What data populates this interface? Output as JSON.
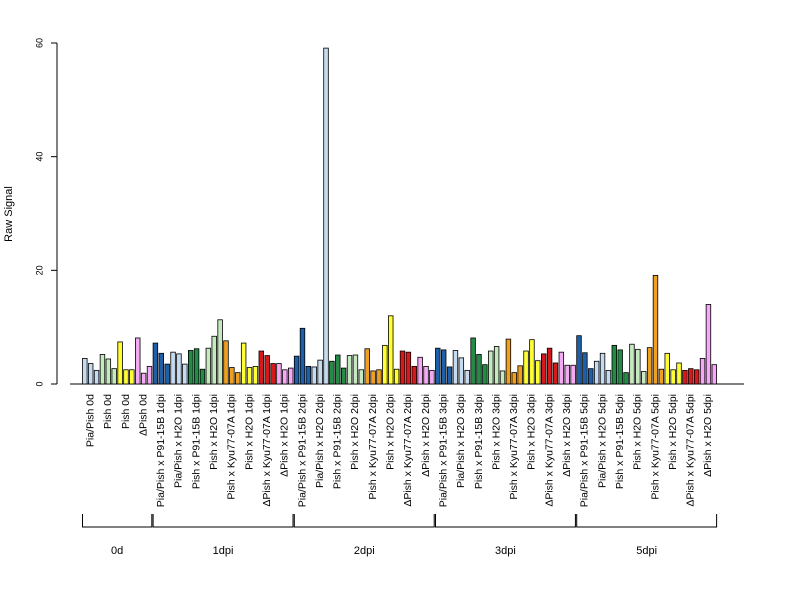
{
  "chart_data": {
    "type": "bar",
    "ylabel": "Raw Signal",
    "ylim": [
      0,
      60
    ],
    "yticks": [
      0,
      20,
      40,
      60
    ],
    "grid": false,
    "bars_per_category": 3,
    "categories": [
      {
        "label": "Pia/Pish 0d",
        "color": "#c6dbef",
        "values": [
          4.5,
          3.6,
          2.4
        ]
      },
      {
        "label": "Pish 0d",
        "color": "#c7e9c0",
        "values": [
          5.2,
          4.4,
          2.7
        ]
      },
      {
        "label": "Pish 0d",
        "color": "#ffff33",
        "values": [
          7.4,
          2.5,
          2.5
        ]
      },
      {
        "label": "ΔPish 0d",
        "color": "#f4a9f4",
        "values": [
          8.1,
          1.9,
          3.1
        ]
      },
      {
        "label": "Pia/Pish x P91-15B 1dpi",
        "color": "#1f5fa8",
        "values": [
          7.2,
          5.4,
          3.5
        ]
      },
      {
        "label": "Pia/Pish x H2O 1dpi",
        "color": "#c6dbef",
        "values": [
          5.6,
          5.3,
          3.5
        ]
      },
      {
        "label": "Pish x P91-15B 1dpi",
        "color": "#238b45",
        "values": [
          5.9,
          6.2,
          2.6
        ]
      },
      {
        "label": "Pish x H2O 1dpi",
        "color": "#c7e9c0",
        "values": [
          6.3,
          8.4,
          11.3
        ]
      },
      {
        "label": "Pish x Kyu77-07A 1dpi",
        "color": "#f0a020",
        "values": [
          7.6,
          2.9,
          2.0
        ]
      },
      {
        "label": "Pish x H2O 1dpi",
        "color": "#ffff33",
        "values": [
          7.2,
          2.9,
          3.1
        ]
      },
      {
        "label": "ΔPish x Kyu77-07A 1dpi",
        "color": "#d7191c",
        "values": [
          5.8,
          5.0,
          3.6
        ]
      },
      {
        "label": "ΔPish x H2O 1dpi",
        "color": "#f4a9f4",
        "values": [
          3.6,
          2.5,
          2.8
        ]
      },
      {
        "label": "Pia/Pish x P91-15B 2dpi",
        "color": "#1f5fa8",
        "values": [
          4.9,
          9.8,
          3.1
        ]
      },
      {
        "label": "Pia/Pish x H2O 2dpi",
        "color": "#c6dbef",
        "values": [
          3.0,
          4.2,
          59.1
        ]
      },
      {
        "label": "Pish x P91-15B 2dpi",
        "color": "#238b45",
        "values": [
          4.0,
          5.1,
          2.8
        ]
      },
      {
        "label": "Pish x H2O 2dpi",
        "color": "#c7e9c0",
        "values": [
          5.0,
          5.1,
          2.5
        ]
      },
      {
        "label": "Pish x Kyu77-07A 2dpi",
        "color": "#f0a020",
        "values": [
          6.2,
          2.3,
          2.5
        ]
      },
      {
        "label": "Pish x H2O 2dpi",
        "color": "#ffff33",
        "values": [
          6.8,
          12.0,
          2.6
        ]
      },
      {
        "label": "ΔPish x Kyu77-07A 2dpi",
        "color": "#d7191c",
        "values": [
          5.8,
          5.6,
          3.1
        ]
      },
      {
        "label": "ΔPish x H2O 2dpi",
        "color": "#f4a9f4",
        "values": [
          4.7,
          3.1,
          2.4
        ]
      },
      {
        "label": "Pia/Pish x P91-15B 3dpi",
        "color": "#1f5fa8",
        "values": [
          6.3,
          6.0,
          3.0
        ]
      },
      {
        "label": "Pia/Pish x H2O 3dpi",
        "color": "#c6dbef",
        "values": [
          5.9,
          4.6,
          2.4
        ]
      },
      {
        "label": "Pish x P91-15B 3dpi",
        "color": "#238b45",
        "values": [
          8.1,
          5.2,
          3.4
        ]
      },
      {
        "label": "Pish x H2O 3dpi",
        "color": "#c7e9c0",
        "values": [
          5.8,
          6.6,
          2.3
        ]
      },
      {
        "label": "Pish x Kyu77-07A 3dpi",
        "color": "#f0a020",
        "values": [
          7.9,
          2.0,
          3.2
        ]
      },
      {
        "label": "Pish x H2O 3dpi",
        "color": "#ffff33",
        "values": [
          5.8,
          7.8,
          4.1
        ]
      },
      {
        "label": "ΔPish x Kyu77-07A 3dpi",
        "color": "#d7191c",
        "values": [
          5.3,
          6.3,
          3.7
        ]
      },
      {
        "label": "ΔPish x H2O 3dpi",
        "color": "#f4a9f4",
        "values": [
          5.6,
          3.3,
          3.3
        ]
      },
      {
        "label": "Pia/Pish x P91-15B 5dpi",
        "color": "#1f5fa8",
        "values": [
          8.5,
          5.5,
          2.7
        ]
      },
      {
        "label": "Pia/Pish x H2O 5dpi",
        "color": "#c6dbef",
        "values": [
          4.0,
          5.4,
          2.4
        ]
      },
      {
        "label": "Pish x P91-15B 5dpi",
        "color": "#238b45",
        "values": [
          6.8,
          6.0,
          2.0
        ]
      },
      {
        "label": "Pish x H2O 5dpi",
        "color": "#c7e9c0",
        "values": [
          7.0,
          6.1,
          2.2
        ]
      },
      {
        "label": "Pish x Kyu77-07A 5dpi",
        "color": "#f0a020",
        "values": [
          6.4,
          19.1,
          2.6
        ]
      },
      {
        "label": "Pish x H2O 5dpi",
        "color": "#ffff33",
        "values": [
          5.4,
          2.5,
          3.7
        ]
      },
      {
        "label": "ΔPish x Kyu77-07A 5dpi",
        "color": "#d7191c",
        "values": [
          2.4,
          2.7,
          2.5
        ]
      },
      {
        "label": "ΔPish x H2O 5dpi",
        "color": "#f4a9f4",
        "values": [
          4.5,
          14.0,
          3.4
        ]
      }
    ],
    "groups": [
      {
        "label": "0d",
        "first": 0,
        "last": 3
      },
      {
        "label": "1dpi",
        "first": 4,
        "last": 11
      },
      {
        "label": "2dpi",
        "first": 12,
        "last": 19
      },
      {
        "label": "3dpi",
        "first": 20,
        "last": 27
      },
      {
        "label": "5dpi",
        "first": 28,
        "last": 35
      }
    ]
  }
}
